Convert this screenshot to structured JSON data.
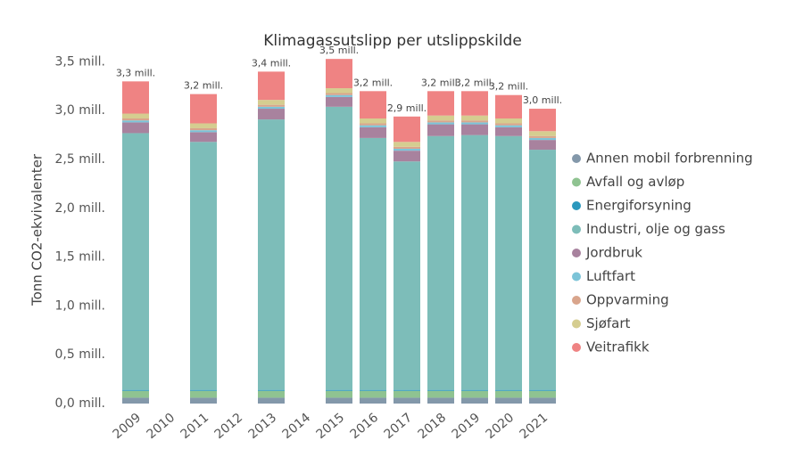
{
  "chart_data": {
    "type": "stacked_bar",
    "title": "Klimagassutslipp per utslippskilde",
    "y_label": "Tonn CO2-ekvivalenter",
    "categories": [
      "2009",
      "2010",
      "2011",
      "2012",
      "2013",
      "2014",
      "2015",
      "2016",
      "2017",
      "2018",
      "2019",
      "2020",
      "2021"
    ],
    "ylim": [
      0,
      3650000
    ],
    "yticks": [
      {
        "value": 0,
        "label": "0,0 mill."
      },
      {
        "value": 500000,
        "label": "0,5 mill."
      },
      {
        "value": 1000000,
        "label": "1,0 mill."
      },
      {
        "value": 1500000,
        "label": "1,5 mill."
      },
      {
        "value": 2000000,
        "label": "2,0 mill."
      },
      {
        "value": 2500000,
        "label": "2,5 mill."
      },
      {
        "value": 3000000,
        "label": "3,0 mill."
      },
      {
        "value": 3500000,
        "label": "3,5 mill."
      }
    ],
    "series": [
      {
        "name": "Annen mobil forbrenning",
        "color": "#8398aa",
        "values": [
          60000,
          null,
          60000,
          null,
          60000,
          null,
          60000,
          60000,
          60000,
          60000,
          60000,
          60000,
          60000
        ]
      },
      {
        "name": "Avfall og avløp",
        "color": "#8fc391",
        "values": [
          70000,
          null,
          70000,
          null,
          70000,
          null,
          70000,
          70000,
          70000,
          70000,
          70000,
          70000,
          70000
        ]
      },
      {
        "name": "Energiforsyning",
        "color": "#2b98bd",
        "values": [
          10000,
          null,
          10000,
          null,
          10000,
          null,
          10000,
          10000,
          10000,
          10000,
          10000,
          10000,
          10000
        ]
      },
      {
        "name": "Industri, olje og gass",
        "color": "#7dbdb9",
        "values": [
          2630000,
          null,
          2540000,
          null,
          2770000,
          null,
          2900000,
          2580000,
          2340000,
          2600000,
          2610000,
          2600000,
          2460000
        ]
      },
      {
        "name": "Jordbruk",
        "color": "#a8829e",
        "values": [
          110000,
          null,
          100000,
          null,
          110000,
          null,
          100000,
          110000,
          110000,
          120000,
          110000,
          90000,
          100000
        ]
      },
      {
        "name": "Luftfart",
        "color": "#7cc4d8",
        "values": [
          20000,
          null,
          20000,
          null,
          20000,
          null,
          20000,
          20000,
          20000,
          20000,
          20000,
          20000,
          20000
        ]
      },
      {
        "name": "Oppvarming",
        "color": "#d9a58c",
        "values": [
          20000,
          null,
          20000,
          null,
          20000,
          null,
          20000,
          20000,
          20000,
          20000,
          20000,
          20000,
          20000
        ]
      },
      {
        "name": "Sjøfart",
        "color": "#d5cd90",
        "values": [
          50000,
          null,
          50000,
          null,
          50000,
          null,
          50000,
          50000,
          50000,
          50000,
          50000,
          50000,
          50000
        ]
      },
      {
        "name": "Veitrafikk",
        "color": "#ef8383",
        "values": [
          330000,
          null,
          300000,
          null,
          290000,
          null,
          300000,
          280000,
          260000,
          250000,
          250000,
          240000,
          230000
        ]
      }
    ],
    "totals": {
      "values": [
        3300000,
        null,
        3170000,
        null,
        3400000,
        null,
        3530000,
        3200000,
        2940000,
        3200000,
        3200000,
        3160000,
        3020000
      ],
      "value_labels": [
        "3,3 mill.",
        null,
        "3,2 mill.",
        null,
        "3,4 mill.",
        null,
        "3,5 mill.",
        "3,2 mill.",
        "2,9 mill.",
        "3,2 mill.",
        "3,2 mill.",
        "3,2 mill.",
        "3,0 mill."
      ]
    },
    "legend": "right"
  }
}
